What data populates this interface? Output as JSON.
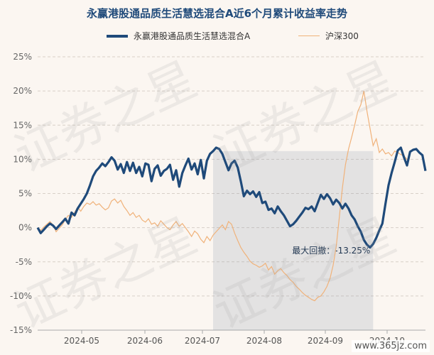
{
  "chart_data": {
    "type": "line",
    "title": "永赢港股通品质生活慧选混合A近6个月累计收益率走势",
    "x_ticks": [
      "2024-05",
      "2024-06",
      "2024-07",
      "2024-08",
      "2024-09",
      "2024-10"
    ],
    "y_ticks": [
      "25%",
      "20%",
      "15%",
      "10%",
      "5%",
      "0%",
      "-5%",
      "-10%",
      "-15%"
    ],
    "ylim": [
      -15,
      25
    ],
    "grid": true,
    "legend_position": "top",
    "series": [
      {
        "name": "永赢港股通品质生活慧选混合A",
        "color": "#1f4a7a",
        "values": [
          0.0,
          -0.8,
          -0.3,
          0.2,
          0.6,
          0.3,
          -0.2,
          0.3,
          0.8,
          1.3,
          0.6,
          2.2,
          1.8,
          2.8,
          3.5,
          4.2,
          5.0,
          6.2,
          7.5,
          8.3,
          8.8,
          9.4,
          9.0,
          9.6,
          10.3,
          9.8,
          8.5,
          9.3,
          8.0,
          9.6,
          8.3,
          9.5,
          8.0,
          8.9,
          7.5,
          9.4,
          9.2,
          6.8,
          8.6,
          9.1,
          7.6,
          8.3,
          8.6,
          9.2,
          7.0,
          8.4,
          6.0,
          8.0,
          9.1,
          10.1,
          8.5,
          9.4,
          7.8,
          9.9,
          7.2,
          9.8,
          10.8,
          11.2,
          11.7,
          11.5,
          10.8,
          9.6,
          8.4,
          9.4,
          9.8,
          8.8,
          6.8,
          4.6,
          5.4,
          4.9,
          5.3,
          4.5,
          5.2,
          3.6,
          3.8,
          2.6,
          2.8,
          2.1,
          3.1,
          2.4,
          1.8,
          1.0,
          0.2,
          0.5,
          1.0,
          1.6,
          2.2,
          2.9,
          2.7,
          3.1,
          2.4,
          3.6,
          4.8,
          4.2,
          4.9,
          4.3,
          3.4,
          4.1,
          3.6,
          2.8,
          3.5,
          2.8,
          1.8,
          1.2,
          0.2,
          -0.6,
          -1.8,
          -2.5,
          -2.9,
          -2.4,
          -1.5,
          -0.4,
          0.6,
          3.5,
          6.2,
          8.0,
          9.6,
          11.3,
          11.7,
          10.3,
          9.1,
          11.1,
          11.4,
          11.5,
          11.0,
          10.6,
          8.3
        ],
        "x_start": "2024-04-15",
        "x_step_days": 1.35
      },
      {
        "name": "沪深300",
        "color": "#f0b27a",
        "values": [
          0.0,
          -0.4,
          0.1,
          0.5,
          0.9,
          0.4,
          -0.6,
          -0.1,
          0.4,
          1.2,
          1.8,
          1.5,
          2.2,
          3.0,
          2.4,
          3.1,
          3.6,
          3.4,
          3.8,
          3.3,
          3.5,
          3.0,
          2.6,
          2.9,
          3.9,
          4.2,
          3.6,
          4.0,
          3.1,
          2.5,
          1.8,
          2.2,
          1.5,
          1.8,
          1.1,
          0.8,
          1.3,
          0.5,
          0.7,
          0.2,
          1.0,
          0.5,
          0.0,
          -0.3,
          0.4,
          0.9,
          0.2,
          0.6,
          0.0,
          -0.6,
          -1.3,
          -0.5,
          -0.9,
          -1.7,
          -2.2,
          -1.3,
          -1.9,
          -1.1,
          -0.6,
          -0.1,
          0.4,
          -0.3,
          0.9,
          0.5,
          -0.8,
          -1.9,
          -2.9,
          -3.6,
          -4.2,
          -4.9,
          -5.3,
          -5.5,
          -5.8,
          -5.6,
          -5.2,
          -6.2,
          -5.7,
          -6.8,
          -6.3,
          -6.0,
          -6.6,
          -7.0,
          -7.6,
          -8.0,
          -8.6,
          -9.0,
          -9.5,
          -9.9,
          -10.2,
          -10.5,
          -10.7,
          -10.2,
          -10.0,
          -9.4,
          -8.6,
          -7.4,
          -5.5,
          -2.8,
          1.5,
          5.8,
          9.2,
          11.5,
          13.2,
          15.0,
          17.0,
          18.0,
          20.0,
          17.0,
          14.5,
          12.0,
          13.0,
          11.0,
          11.5,
          10.8,
          11.0,
          10.5,
          11.2,
          11.0,
          10.7,
          10.5,
          10.0
        ]
      }
    ],
    "annotation": {
      "label": "最大回撤：-13.25%",
      "drawdown_start_index": 57,
      "drawdown_end_index": 109
    }
  },
  "watermark": "证券之星",
  "site": "www.365jz.com"
}
